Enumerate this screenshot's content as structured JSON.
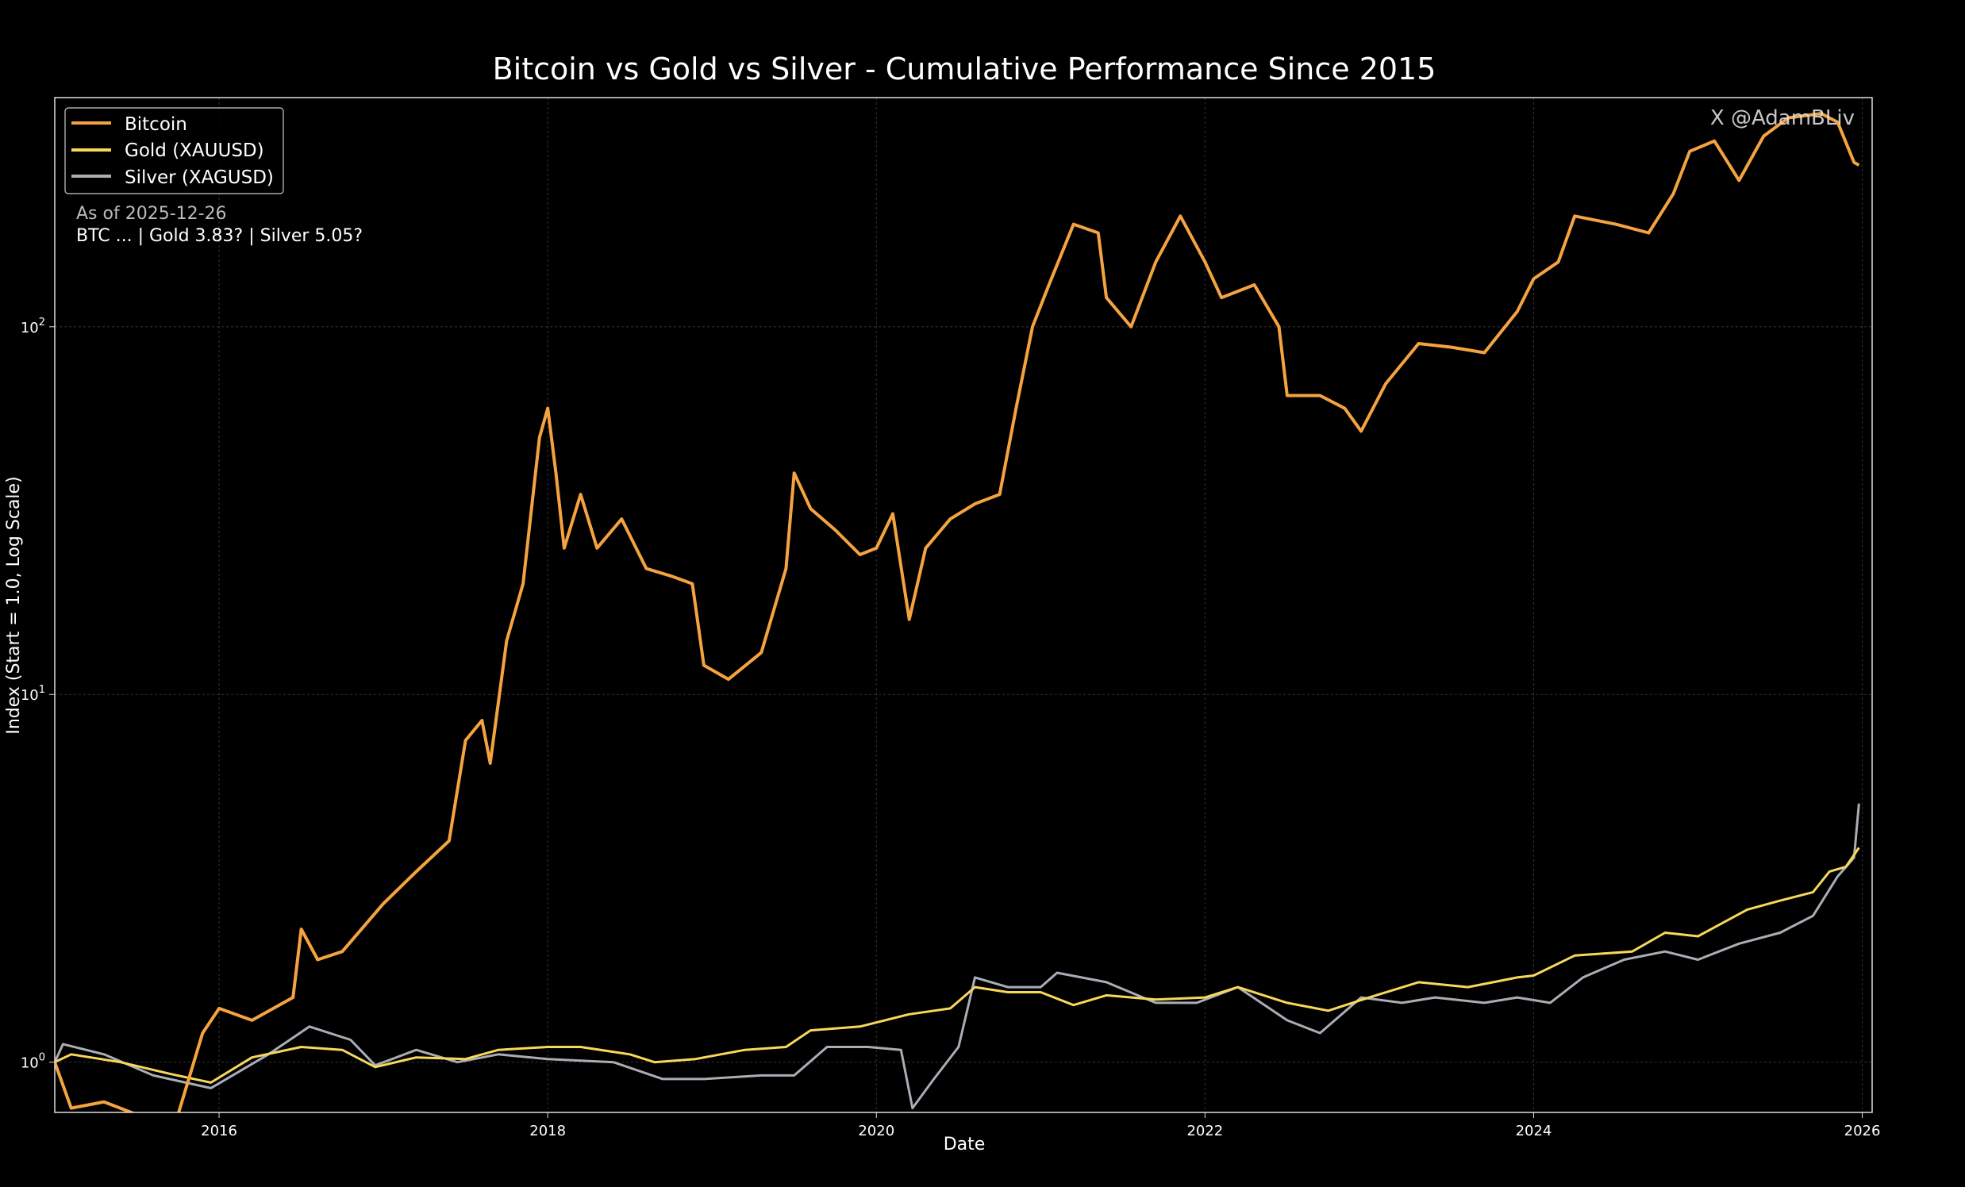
{
  "chart_data": {
    "type": "line",
    "title": "Bitcoin vs Gold vs Silver - Cumulative Performance Since 2015",
    "xlabel": "Date",
    "ylabel": "Index (Start = 1.0, Log Scale)",
    "yscale": "log",
    "xlim": [
      2015.0,
      2026.06
    ],
    "ylim": [
      0.73,
      420
    ],
    "grid": true,
    "legend_position": "top-left",
    "x_ticks": [
      {
        "value": 2016,
        "label": "2016"
      },
      {
        "value": 2018,
        "label": "2018"
      },
      {
        "value": 2020,
        "label": "2020"
      },
      {
        "value": 2022,
        "label": "2022"
      },
      {
        "value": 2024,
        "label": "2024"
      },
      {
        "value": 2026,
        "label": "2026"
      }
    ],
    "y_ticks": [
      {
        "value": 1,
        "base": "10",
        "exp": "0"
      },
      {
        "value": 10,
        "base": "10",
        "exp": "1"
      },
      {
        "value": 100,
        "base": "10",
        "exp": "2"
      }
    ],
    "annotation": {
      "line1": "As of 2025-12-26",
      "line2": "BTC ...  |  Gold 3.83?  |  Silver 5.05?"
    },
    "watermark": "X @AdamBLiv",
    "series": [
      {
        "name": "Bitcoin",
        "color": "#f5a340",
        "x": [
          2015.0,
          2015.1,
          2015.3,
          2015.5,
          2015.6,
          2015.75,
          2015.9,
          2016.0,
          2016.2,
          2016.45,
          2016.5,
          2016.6,
          2016.75,
          2017.0,
          2017.2,
          2017.4,
          2017.5,
          2017.6,
          2017.65,
          2017.75,
          2017.85,
          2017.95,
          2018.0,
          2018.05,
          2018.1,
          2018.2,
          2018.3,
          2018.45,
          2018.6,
          2018.75,
          2018.88,
          2018.95,
          2019.1,
          2019.3,
          2019.45,
          2019.5,
          2019.6,
          2019.75,
          2019.9,
          2020.0,
          2020.1,
          2020.2,
          2020.3,
          2020.45,
          2020.6,
          2020.75,
          2020.85,
          2020.95,
          2021.05,
          2021.2,
          2021.35,
          2021.4,
          2021.55,
          2021.7,
          2021.85,
          2022.0,
          2022.1,
          2022.3,
          2022.45,
          2022.5,
          2022.7,
          2022.85,
          2022.95,
          2023.1,
          2023.3,
          2023.5,
          2023.7,
          2023.9,
          2024.0,
          2024.15,
          2024.25,
          2024.5,
          2024.7,
          2024.85,
          2024.95,
          2025.1,
          2025.25,
          2025.4,
          2025.55,
          2025.75,
          2025.85,
          2025.95,
          2025.98
        ],
        "y": [
          1.0,
          0.75,
          0.78,
          0.72,
          0.7,
          0.72,
          1.2,
          1.4,
          1.3,
          1.5,
          2.3,
          1.9,
          2.0,
          2.7,
          3.3,
          4.0,
          7.5,
          8.5,
          6.5,
          14,
          20,
          50,
          60,
          40,
          25,
          35,
          25,
          30,
          22,
          21,
          20,
          12,
          11,
          13,
          22,
          40,
          32,
          28,
          24,
          25,
          31,
          16,
          25,
          30,
          33,
          35,
          60,
          100,
          130,
          190,
          180,
          120,
          100,
          150,
          200,
          150,
          120,
          130,
          100,
          65,
          65,
          60,
          52,
          70,
          90,
          88,
          85,
          110,
          135,
          150,
          200,
          190,
          180,
          230,
          300,
          320,
          250,
          330,
          370,
          380,
          360,
          280,
          275
        ]
      },
      {
        "name": "Gold (XAUUSD)",
        "color": "#f7d85a",
        "x": [
          2015.0,
          2015.1,
          2015.4,
          2015.7,
          2015.95,
          2016.2,
          2016.5,
          2016.75,
          2016.95,
          2017.2,
          2017.5,
          2017.7,
          2018.0,
          2018.2,
          2018.5,
          2018.65,
          2018.9,
          2019.2,
          2019.45,
          2019.6,
          2019.9,
          2020.2,
          2020.45,
          2020.6,
          2020.8,
          2021.0,
          2021.2,
          2021.4,
          2021.7,
          2022.0,
          2022.2,
          2022.5,
          2022.75,
          2023.0,
          2023.3,
          2023.6,
          2023.9,
          2024.0,
          2024.25,
          2024.6,
          2024.8,
          2025.0,
          2025.3,
          2025.5,
          2025.7,
          2025.8,
          2025.9,
          2025.98
        ],
        "y": [
          1.0,
          1.05,
          1.0,
          0.93,
          0.88,
          1.03,
          1.1,
          1.08,
          0.97,
          1.03,
          1.02,
          1.08,
          1.1,
          1.1,
          1.05,
          1.0,
          1.02,
          1.08,
          1.1,
          1.22,
          1.25,
          1.35,
          1.4,
          1.6,
          1.55,
          1.55,
          1.43,
          1.52,
          1.48,
          1.5,
          1.6,
          1.45,
          1.38,
          1.5,
          1.65,
          1.6,
          1.7,
          1.72,
          1.95,
          2.0,
          2.25,
          2.2,
          2.6,
          2.75,
          2.9,
          3.3,
          3.4,
          3.83
        ]
      },
      {
        "name": "Silver (XAGUSD)",
        "color": "#a9adb5",
        "x": [
          2015.0,
          2015.05,
          2015.3,
          2015.6,
          2015.95,
          2016.3,
          2016.55,
          2016.8,
          2016.95,
          2017.2,
          2017.45,
          2017.7,
          2018.0,
          2018.4,
          2018.7,
          2018.95,
          2019.3,
          2019.5,
          2019.7,
          2019.95,
          2020.15,
          2020.22,
          2020.35,
          2020.5,
          2020.6,
          2020.8,
          2021.0,
          2021.1,
          2021.4,
          2021.7,
          2021.95,
          2022.2,
          2022.5,
          2022.7,
          2022.95,
          2023.2,
          2023.4,
          2023.7,
          2023.9,
          2024.1,
          2024.3,
          2024.55,
          2024.8,
          2025.0,
          2025.25,
          2025.5,
          2025.7,
          2025.85,
          2025.95,
          2025.98
        ],
        "y": [
          1.0,
          1.12,
          1.05,
          0.92,
          0.85,
          1.05,
          1.25,
          1.15,
          0.98,
          1.08,
          1.0,
          1.05,
          1.02,
          1.0,
          0.9,
          0.9,
          0.92,
          0.92,
          1.1,
          1.1,
          1.08,
          0.75,
          0.9,
          1.1,
          1.7,
          1.6,
          1.6,
          1.75,
          1.65,
          1.45,
          1.45,
          1.6,
          1.3,
          1.2,
          1.5,
          1.45,
          1.5,
          1.45,
          1.5,
          1.45,
          1.7,
          1.9,
          2.0,
          1.9,
          2.1,
          2.25,
          2.5,
          3.2,
          3.6,
          5.05
        ]
      }
    ]
  }
}
